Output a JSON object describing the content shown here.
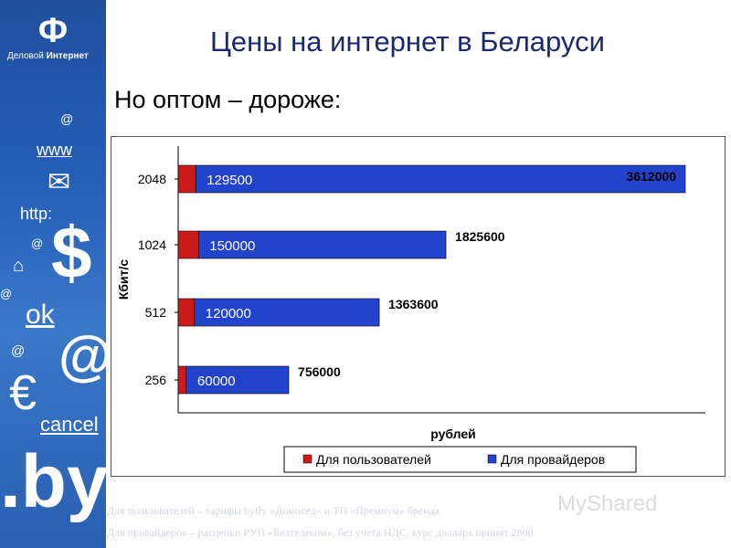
{
  "header": {
    "title": "Цены на интернет в Беларуси",
    "subtitle": "Но оптом – дороже:"
  },
  "sidebar": {
    "logo_mark": "Ф",
    "logo_text_1": "Деловой",
    "logo_text_2": "Интернет",
    "symbols": [
      "@",
      "www",
      "✉",
      "http:",
      "@",
      "$",
      "⌂",
      "@",
      "ok",
      "@",
      "@",
      "€",
      "cancel",
      ".by"
    ]
  },
  "chart_data": {
    "type": "bar",
    "orientation": "horizontal",
    "stacked": true,
    "categories": [
      "2048",
      "1024",
      "512",
      "256"
    ],
    "series": [
      {
        "name": "Для пользователей",
        "color": "#cc1a1a",
        "values": [
          129500,
          150000,
          120000,
          60000
        ]
      },
      {
        "name": "Для провайдеров",
        "color": "#2244cc",
        "values": [
          3612000,
          1825600,
          1363600,
          756000
        ]
      }
    ],
    "ylabel": "Кбит/с",
    "xlabel": "рублей",
    "legend_position": "bottom",
    "grid": false
  },
  "footnotes": [
    "Для пользователей – тарифы byfly «Домосед» и ТП «Премиум» бренда",
    "Для провайдеров – расценки РУП «Белтелеком», без учета НДС, курс доллара принят 2800"
  ],
  "watermark": "MyShared"
}
